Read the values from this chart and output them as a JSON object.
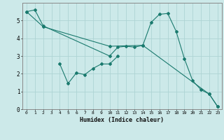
{
  "xlabel": "Humidex (Indice chaleur)",
  "background_color": "#cce9e9",
  "grid_color": "#add4d4",
  "line_color": "#1a7a6e",
  "xlim": [
    -0.5,
    23.5
  ],
  "ylim": [
    0,
    6
  ],
  "yticks": [
    0,
    1,
    2,
    3,
    4,
    5
  ],
  "xticks": [
    0,
    1,
    2,
    3,
    4,
    5,
    6,
    7,
    8,
    9,
    10,
    11,
    12,
    13,
    14,
    15,
    16,
    17,
    18,
    19,
    20,
    21,
    22,
    23
  ],
  "line1_x": [
    0,
    1,
    2,
    10,
    11,
    12,
    13,
    14,
    22,
    23
  ],
  "line1_y": [
    5.5,
    5.6,
    4.7,
    3.0,
    3.5,
    3.55,
    3.5,
    3.6,
    0.85,
    0.15
  ],
  "line2_x": [
    0,
    2,
    10,
    14,
    15,
    16,
    17,
    18,
    19,
    20,
    21,
    22,
    23
  ],
  "line2_y": [
    5.5,
    4.65,
    3.55,
    3.6,
    4.9,
    5.35,
    5.4,
    4.4,
    2.85,
    1.6,
    1.1,
    0.85,
    0.15
  ],
  "line3_x": [
    4,
    5,
    6,
    7,
    8,
    9,
    10,
    11
  ],
  "line3_y": [
    2.55,
    1.45,
    2.05,
    1.95,
    2.3,
    2.55,
    2.55,
    3.0
  ]
}
